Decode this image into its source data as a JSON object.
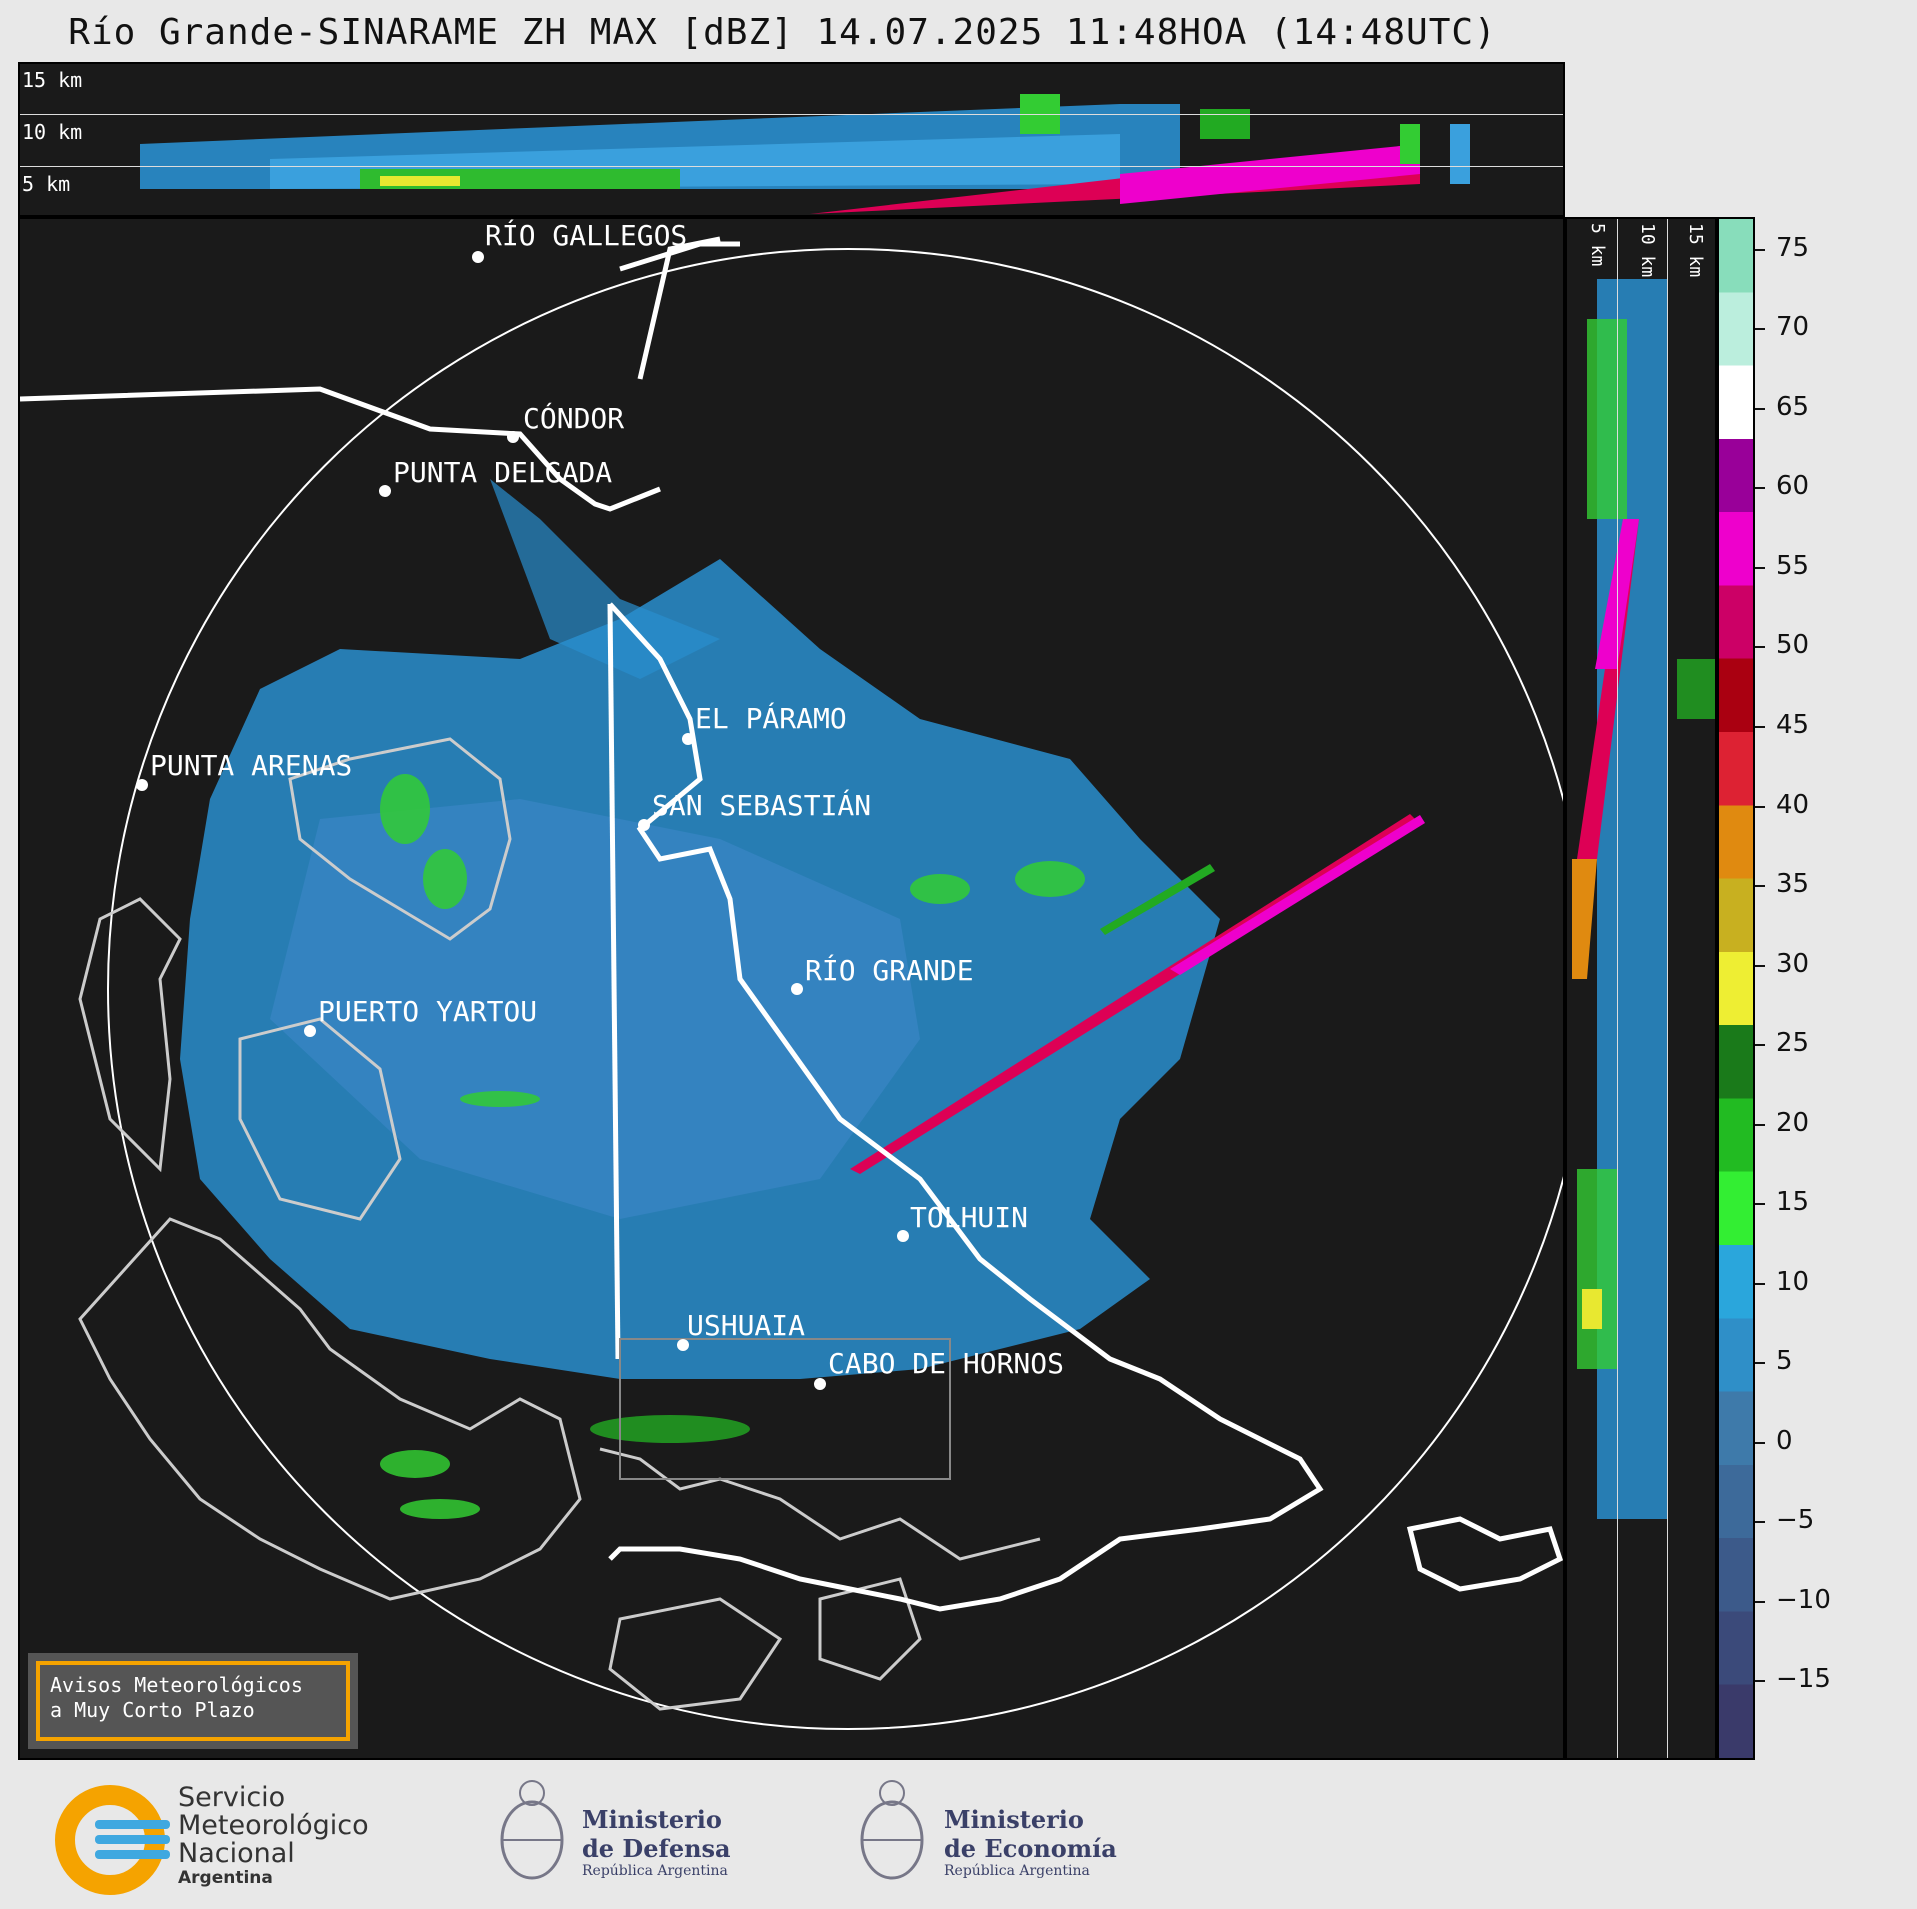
{
  "title": "Río Grande-SINARAME ZH MAX [dBZ] 14.07.2025 11:48HOA (14:48UTC)",
  "top_panel": {
    "height_labels": [
      "15 km",
      "10 km",
      "5 km"
    ]
  },
  "side_panel": {
    "height_labels": [
      "5 km",
      "10 km",
      "15 km"
    ]
  },
  "cities": [
    {
      "name": "RÍO GALLEGOS"
    },
    {
      "name": "CÓNDOR"
    },
    {
      "name": "PUNTA DELGADA"
    },
    {
      "name": "EL PÁRAMO"
    },
    {
      "name": "PUNTA ARENAS"
    },
    {
      "name": "SAN SEBASTIÁN"
    },
    {
      "name": "RÍO GRANDE"
    },
    {
      "name": "PUERTO YARTOU"
    },
    {
      "name": "TOLHUIN"
    },
    {
      "name": "USHUAIA"
    },
    {
      "name": "CABO DE HORNOS"
    }
  ],
  "avisos": {
    "line1": "Avisos Meteorológicos",
    "line2": "a Muy Corto Plazo"
  },
  "colorbar": {
    "ticks": [
      "75",
      "70",
      "65",
      "60",
      "55",
      "50",
      "45",
      "40",
      "35",
      "30",
      "25",
      "20",
      "15",
      "10",
      "5",
      "0",
      "−5",
      "−10",
      "−15"
    ],
    "colors": [
      "#3a3a6a",
      "#3b4a7a",
      "#3c5a8a",
      "#3d6a9a",
      "#3e7aaa",
      "#2f8fc8",
      "#2aa6dc",
      "#33ee33",
      "#22bb22",
      "#1a7a1a",
      "#eeee33",
      "#c8b020",
      "#e08a10",
      "#dd2233",
      "#aa0011",
      "#cc0066",
      "#ee00cc",
      "#990099",
      "#ffffff",
      "#bbeedd",
      "#88ddbb"
    ],
    "unit_range": [
      -20,
      77
    ]
  },
  "logos": {
    "smn": {
      "l1": "Servicio",
      "l2": "Meteorológico",
      "l3": "Nacional",
      "l4": "Argentina"
    },
    "defensa": {
      "l1": "Ministerio",
      "l2": "de Defensa",
      "l3": "República Argentina"
    },
    "economia": {
      "l1": "Ministerio",
      "l2": "de Economía",
      "l3": "República Argentina"
    }
  }
}
